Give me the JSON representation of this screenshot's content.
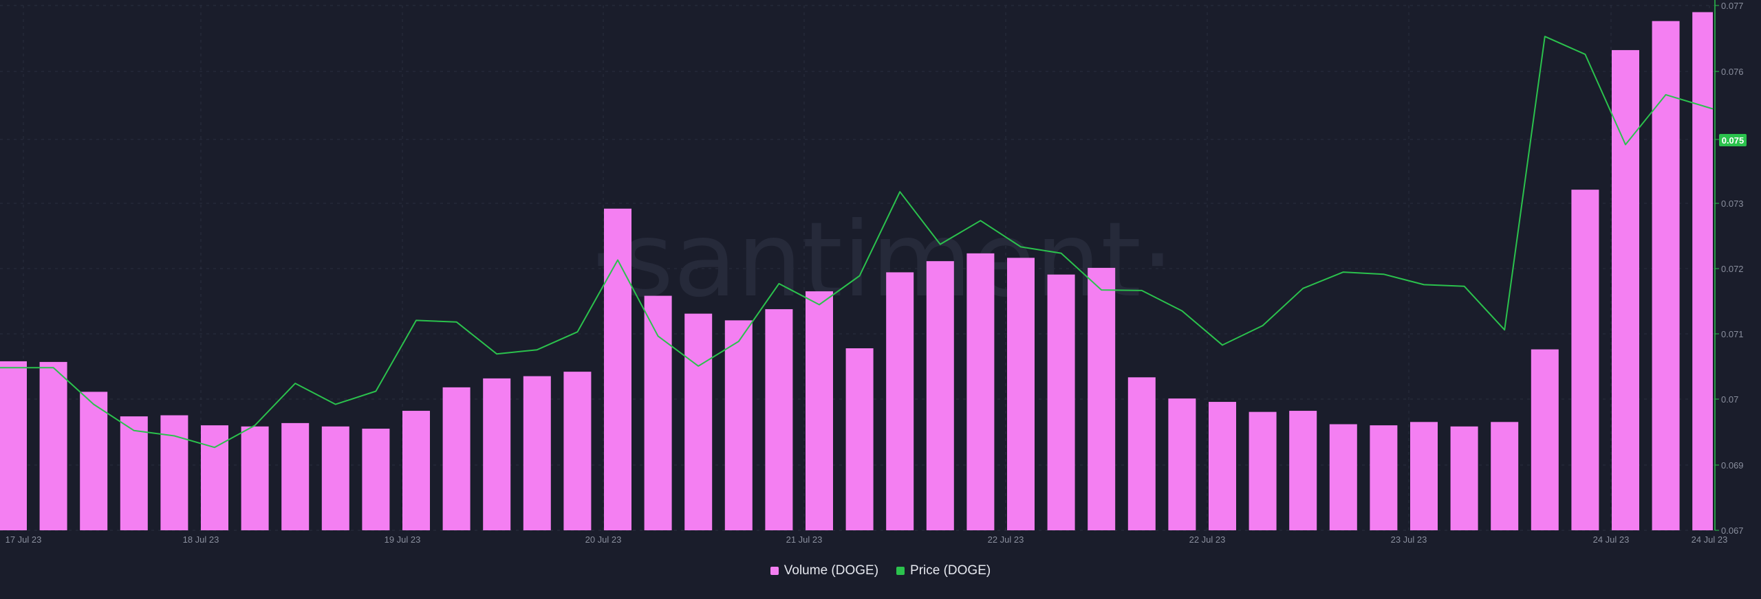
{
  "watermark": "·santiment·",
  "colors": {
    "background": "#1a1d2b",
    "volume": "#f47ff2",
    "price": "#2bc24d",
    "grid": "#2a2e3f",
    "price_badge": "#2bc24d"
  },
  "legend": {
    "volume": "Volume (DOGE)",
    "price": "Price (DOGE)"
  },
  "price_badge": "0.075",
  "chart_data": {
    "type": "bar+line",
    "x_ticks": [
      "17 Jul 23",
      "18 Jul 23",
      "19 Jul 23",
      "20 Jul 23",
      "21 Jul 23",
      "22 Jul 23",
      "22 Jul 23",
      "23 Jul 23",
      "24 Jul 23",
      "24 Jul 23"
    ],
    "y_right_ticks": [
      "0.077",
      "0.076",
      "0.075",
      "0.073",
      "0.072",
      "0.071",
      "0.07",
      "0.069",
      "0.067"
    ],
    "y_right_range": [
      0.067,
      0.077
    ],
    "grid": true,
    "legend_position": "bottom-center",
    "series": [
      {
        "name": "Volume (DOGE)",
        "type": "bar",
        "axis": "hidden-left",
        "values": [
          0.3255,
          0.3242,
          0.2667,
          0.2194,
          0.2215,
          0.2022,
          0.2,
          0.2065,
          0.2,
          0.1957,
          0.2301,
          0.2753,
          0.2925,
          0.2968,
          0.3054,
          0.6194,
          0.4516,
          0.4172,
          0.4043,
          0.4258,
          0.4602,
          0.3505,
          0.4968,
          0.5183,
          0.5333,
          0.5247,
          0.4925,
          0.5054,
          0.2946,
          0.2538,
          0.2473,
          0.228,
          0.2301,
          0.2043,
          0.2022,
          0.2086,
          0.2,
          0.2086,
          0.3484,
          0.6559,
          0.9247,
          0.9806,
          0.9978
        ]
      },
      {
        "name": "Price (DOGE)",
        "type": "line",
        "axis": "right",
        "values": [
          0.0701,
          0.0701,
          0.0694,
          0.0689,
          0.0688,
          0.06858,
          0.069,
          0.0698,
          0.0694,
          0.06965,
          0.071,
          0.07097,
          0.07036,
          0.07044,
          0.07078,
          0.07215,
          0.0707,
          0.07013,
          0.0706,
          0.0717,
          0.0713,
          0.07185,
          0.07345,
          0.07245,
          0.0729,
          0.0724,
          0.07228,
          0.07158,
          0.07157,
          0.07118,
          0.07053,
          0.0709,
          0.07161,
          0.07192,
          0.07188,
          0.07168,
          0.07165,
          0.07082,
          0.07641,
          0.07607,
          0.07435,
          0.0753,
          0.07503
        ]
      }
    ]
  }
}
